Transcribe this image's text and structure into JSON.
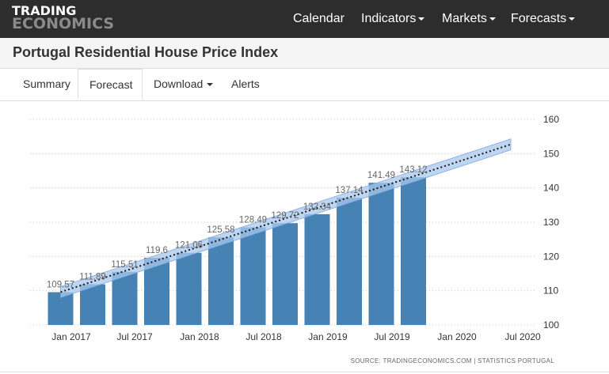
{
  "header": {
    "logo_line1": "TRADING",
    "logo_line2": "ECONOMICS",
    "nav": [
      {
        "label": "Calendar",
        "dropdown": false
      },
      {
        "label": "Indicators",
        "dropdown": true
      },
      {
        "label": "Markets",
        "dropdown": true
      },
      {
        "label": "Forecasts",
        "dropdown": true
      }
    ]
  },
  "page_title": "Portugal Residential House Price Index",
  "tabs": [
    {
      "label": "Summary",
      "active": false
    },
    {
      "label": "Forecast",
      "active": true
    },
    {
      "label": "Download",
      "active": false,
      "dropdown": true
    },
    {
      "label": "Alerts",
      "active": false
    }
  ],
  "chart_data": {
    "type": "bar",
    "categories": [
      "2016 Q4",
      "2017 Q1",
      "2017 Q2",
      "2017 Q3",
      "2017 Q4",
      "2018 Q1",
      "2018 Q2",
      "2018 Q3",
      "2018 Q4",
      "2019 Q1",
      "2019 Q2",
      "2019 Q3"
    ],
    "values": [
      109.57,
      111.89,
      115.51,
      119.6,
      121.06,
      125.58,
      128.49,
      129.72,
      132.34,
      137.14,
      141.49,
      143.12
    ],
    "value_labels": [
      "109.57",
      "111.89",
      "115.51",
      "119.6",
      "121.06",
      "125.58",
      "128.49",
      "129.72",
      "132.34",
      "137.14",
      "141.49",
      "143.12"
    ],
    "x_ticks": [
      "Jan 2017",
      "Jul 2017",
      "Jan 2018",
      "Jul 2018",
      "Jan 2019",
      "Jul 2019",
      "Jan 2020",
      "Jul 2020"
    ],
    "y_ticks": [
      "100",
      "110",
      "120",
      "130",
      "140",
      "150",
      "160"
    ],
    "ylim": [
      100,
      160
    ],
    "trend": {
      "start": 109.6,
      "end": 152.7,
      "band_width": 1.6
    },
    "source": "SOURCE: TRADINGECONOMICS.COM  |  STATISTICS PORTUGAL",
    "colors": {
      "bar": "#4682b4",
      "band": "#a9c8ee",
      "trend": "#1a1a1a",
      "grid": "#c8c8c8",
      "tick": "#333333",
      "value_label": "#666666"
    }
  }
}
